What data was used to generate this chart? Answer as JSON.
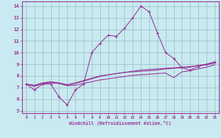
{
  "xlabel": "Windchill (Refroidissement éolien,°C)",
  "background_color": "#c8eaf0",
  "grid_color": "#9ab8c2",
  "line_color": "#993399",
  "xlim": [
    -0.5,
    23.5
  ],
  "ylim": [
    4.8,
    14.4
  ],
  "xticks": [
    0,
    1,
    2,
    3,
    4,
    5,
    6,
    7,
    8,
    9,
    10,
    11,
    12,
    13,
    14,
    15,
    16,
    17,
    18,
    19,
    20,
    21,
    22,
    23
  ],
  "yticks": [
    5,
    6,
    7,
    8,
    9,
    10,
    11,
    12,
    13,
    14
  ],
  "line1_x": [
    0,
    1,
    2,
    3,
    4,
    5,
    6,
    7,
    8,
    9,
    10,
    11,
    12,
    13,
    14,
    15,
    16,
    17,
    18,
    19,
    20,
    21,
    22,
    23
  ],
  "line1_y": [
    7.3,
    6.8,
    7.3,
    7.3,
    6.2,
    5.5,
    6.8,
    7.3,
    10.0,
    10.8,
    11.5,
    11.4,
    12.1,
    13.0,
    14.0,
    13.5,
    11.7,
    10.0,
    9.5,
    8.7,
    8.5,
    8.8,
    9.0,
    9.2
  ],
  "line2_x": [
    0,
    1,
    2,
    3,
    4,
    5,
    6,
    7,
    8,
    9,
    10,
    11,
    12,
    13,
    14,
    15,
    16,
    17,
    18,
    19,
    20,
    21,
    22,
    23
  ],
  "line2_y": [
    7.3,
    7.1,
    7.35,
    7.5,
    7.35,
    7.2,
    7.35,
    7.55,
    7.75,
    7.95,
    8.1,
    8.2,
    8.3,
    8.4,
    8.5,
    8.55,
    8.6,
    8.65,
    8.7,
    8.75,
    8.8,
    8.9,
    8.95,
    9.1
  ],
  "line3_x": [
    0,
    1,
    2,
    3,
    4,
    5,
    6,
    7,
    8,
    9,
    10,
    11,
    12,
    13,
    14,
    15,
    16,
    17,
    18,
    19,
    20,
    21,
    22,
    23
  ],
  "line3_y": [
    7.3,
    7.15,
    7.35,
    7.4,
    7.35,
    7.15,
    7.2,
    7.35,
    7.5,
    7.65,
    7.75,
    7.85,
    7.95,
    8.05,
    8.1,
    8.15,
    8.2,
    8.25,
    7.85,
    8.35,
    8.45,
    8.6,
    8.75,
    8.95
  ],
  "line4_x": [
    0,
    1,
    2,
    3,
    4,
    5,
    6,
    7,
    8,
    9,
    10,
    11,
    12,
    13,
    14,
    15,
    16,
    17,
    18,
    19,
    20,
    21,
    22,
    23
  ],
  "line4_y": [
    7.3,
    7.2,
    7.4,
    7.5,
    7.4,
    7.25,
    7.4,
    7.6,
    7.8,
    8.0,
    8.1,
    8.2,
    8.3,
    8.35,
    8.4,
    8.45,
    8.5,
    8.6,
    8.65,
    8.7,
    8.75,
    8.9,
    9.0,
    9.2
  ]
}
